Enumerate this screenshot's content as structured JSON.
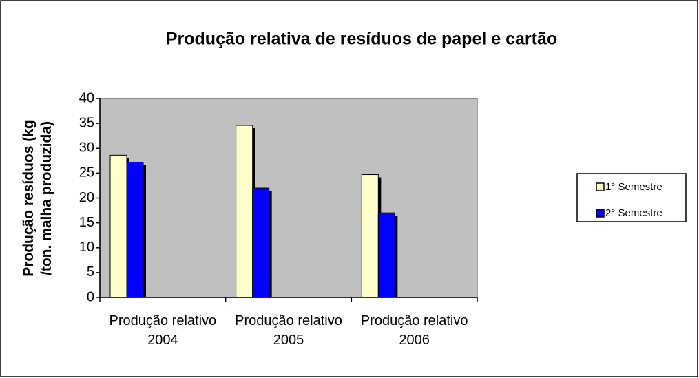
{
  "chart_data": {
    "type": "bar",
    "title": "Produção relativa de resíduos de papel e cartão",
    "y_label": "Produção resíduos (kg /ton. malha produzida)",
    "categories": [
      "Produção relativo 2004",
      "Produção relativo 2005",
      "Produção relativo 2006"
    ],
    "series": [
      {
        "name": "1° Semestre",
        "color": "#ffffcc",
        "values": [
          28.6,
          34.6,
          24.7
        ]
      },
      {
        "name": "2° Semestre",
        "color": "#0000ff",
        "values": [
          27.2,
          22,
          17
        ]
      }
    ],
    "ylim": [
      0,
      40
    ],
    "yticks": [
      0,
      5,
      10,
      15,
      20,
      25,
      30,
      35,
      40
    ],
    "legend": "right"
  }
}
